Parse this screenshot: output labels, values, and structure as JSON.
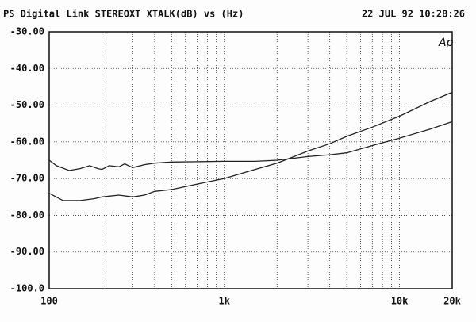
{
  "chart_data": {
    "type": "line",
    "title": "PS Digital Link STEREOXT XTALK(dB) vs (Hz)",
    "subtitle": "22 JUL 92 10:28:26",
    "annotation": "Ap",
    "xscale": "log",
    "grid": true,
    "xlim": [
      100,
      20000
    ],
    "ylim": [
      -100,
      -30
    ],
    "xticks": [
      100,
      {
        "value": 1000,
        "label": "1k"
      },
      {
        "value": 10000,
        "label": "10k"
      },
      {
        "value": 20000,
        "label": "20k"
      }
    ],
    "xgrid": [
      200,
      300,
      400,
      500,
      600,
      700,
      800,
      900,
      2000,
      3000,
      4000,
      5000,
      6000,
      7000,
      8000,
      9000
    ],
    "yticks": [
      {
        "value": -30,
        "label": "-30.00"
      },
      {
        "value": -40,
        "label": "-40.00"
      },
      {
        "value": -50,
        "label": "-50.00"
      },
      {
        "value": -60,
        "label": "-60.00"
      },
      {
        "value": -70,
        "label": "-70.00"
      },
      {
        "value": -80,
        "label": "-80.00"
      },
      {
        "value": -90,
        "label": "-90.00"
      },
      {
        "value": -100,
        "label": "-100.0"
      }
    ],
    "series": [
      {
        "color": "#222222",
        "x": [
          100,
          110,
          130,
          150,
          170,
          190,
          200,
          220,
          250,
          270,
          300,
          350,
          400,
          500,
          700,
          1000,
          1500,
          2000,
          3000,
          4000,
          5000,
          7000,
          10000,
          15000,
          20000
        ],
        "values": [
          -65,
          -66.5,
          -67.8,
          -67.3,
          -66.5,
          -67.3,
          -67.5,
          -66.5,
          -66.8,
          -66,
          -67,
          -66.2,
          -65.8,
          -65.5,
          -65.4,
          -65.3,
          -65.3,
          -65,
          -64,
          -63.5,
          -63,
          -61,
          -59,
          -56.5,
          -54.5
        ]
      },
      {
        "color": "#222222",
        "x": [
          100,
          120,
          150,
          180,
          200,
          250,
          300,
          350,
          400,
          500,
          700,
          1000,
          1500,
          2000,
          2500,
          3000,
          4000,
          5000,
          7000,
          10000,
          15000,
          20000
        ],
        "values": [
          -74,
          -76,
          -76,
          -75.5,
          -75,
          -74.5,
          -75,
          -74.5,
          -73.5,
          -73,
          -71.5,
          -70,
          -67.5,
          -65.8,
          -64,
          -62.5,
          -60.5,
          -58.5,
          -56,
          -53,
          -49,
          -46.5
        ]
      }
    ]
  }
}
